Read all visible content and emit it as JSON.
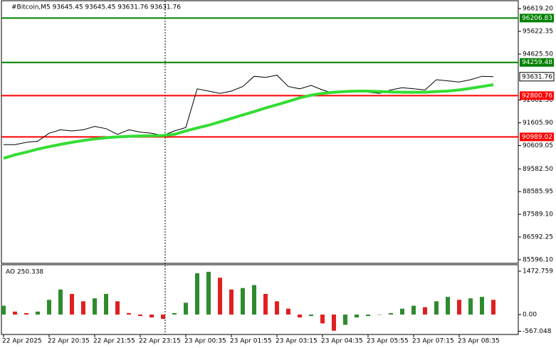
{
  "chart_data": [
    {
      "type": "line",
      "title": "#Bitcoin,M5  93645.45 93645.45 93631.76 93631.76",
      "categories": [
        "22 Apr 2025",
        null,
        null,
        null,
        "22 Apr 20:35",
        null,
        null,
        null,
        "22 Apr 21:55",
        null,
        null,
        null,
        "22 Apr 23:15",
        null,
        null,
        null,
        "23 Apr 00:35",
        null,
        null,
        null,
        "23 Apr 01:55",
        null,
        null,
        null,
        "23 Apr 03:15",
        null,
        null,
        null,
        "23 Apr 04:35",
        null,
        null,
        null,
        "23 Apr 05:55",
        null,
        null,
        null,
        "23 Apr 07:15",
        null,
        null,
        null,
        "23 Apr 08:35",
        null,
        null,
        null
      ],
      "series": [
        {
          "color": "#000000",
          "values": [
            90650,
            90650,
            90750,
            90800,
            91150,
            91300,
            91250,
            91300,
            91450,
            91350,
            91100,
            91300,
            91200,
            91150,
            91050,
            91250,
            91400,
            93100,
            93000,
            92900,
            93000,
            93200,
            93650,
            93600,
            93700,
            93200,
            93100,
            93250,
            93050,
            92900,
            93000,
            93000,
            92950,
            92900,
            93050,
            93150,
            93100,
            93050,
            93500,
            93450,
            93400,
            93500,
            93650,
            93631.76
          ]
        },
        {
          "color": "#33dd33",
          "values": [
            90050,
            90200,
            90320,
            90450,
            90560,
            90660,
            90750,
            90830,
            90900,
            90950,
            90990,
            91010,
            91030,
            91040,
            91050,
            91100,
            91250,
            91380,
            91500,
            91650,
            91800,
            91950,
            92100,
            92260,
            92400,
            92550,
            92700,
            92820,
            92900,
            92950,
            92980,
            93000,
            93000,
            92980,
            92960,
            92950,
            92950,
            92950,
            92980,
            93000,
            93050,
            93120,
            93200,
            93280
          ]
        }
      ],
      "levels": [
        {
          "value": 96206.83,
          "color": "#008000"
        },
        {
          "value": 94259.48,
          "color": "#008000"
        },
        {
          "value": 92800.76,
          "color": "#ff0000"
        },
        {
          "value": 90989.02,
          "color": "#ff0000"
        }
      ],
      "last_price": 93631.76,
      "ylim": [
        85500,
        96750
      ],
      "yticks": [
        {
          "value": 96619.2,
          "label": "96619.20"
        },
        95622.35,
        {
          "value": 94625.5,
          "label": "94625.50"
        },
        {
          "value": 92602.5,
          "label": "92602.50"
        },
        {
          "value": 91605.9,
          "label": "91605.90"
        },
        90609.05,
        {
          "value": 89582.5,
          "label": "89582.50"
        },
        88585.95,
        {
          "value": 87589.1,
          "label": "87589.10"
        },
        86592.25,
        {
          "value": 85596.1,
          "label": "85596.10"
        }
      ]
    },
    {
      "type": "bar",
      "title": "AO 250.338",
      "up_color": "#2e8b2e",
      "down_color": "#e02020",
      "values": [
        300,
        100,
        50,
        100,
        500,
        850,
        700,
        450,
        550,
        700,
        450,
        50,
        -50,
        -100,
        -150,
        50,
        400,
        1400,
        1450,
        1250,
        850,
        900,
        1000,
        700,
        450,
        200,
        -100,
        -50,
        -300,
        -550,
        -350,
        -100,
        -50,
        0,
        50,
        200,
        300,
        250,
        450,
        600,
        500,
        550,
        600,
        500
      ],
      "ylim": [
        -628,
        1642
      ],
      "yticks": [
        1472.759,
        {
          "value": 0,
          "label": "0.00"
        },
        -567.048
      ]
    }
  ]
}
